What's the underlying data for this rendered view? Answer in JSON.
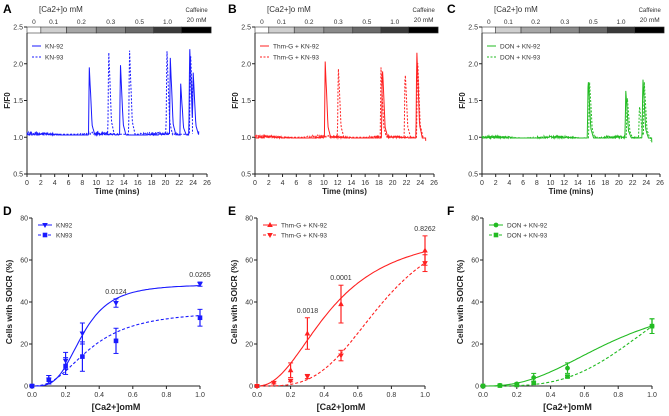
{
  "chart_data": [
    {
      "panel": "A",
      "type": "line",
      "bar_title": "[Ca2+]o mM",
      "bar_segments": [
        {
          "label": "0",
          "start": 0,
          "end": 2,
          "color": "#ffffff"
        },
        {
          "label": "0.1",
          "start": 2,
          "end": 5.7,
          "color": "#cfcfcf"
        },
        {
          "label": "0.2",
          "start": 5.7,
          "end": 10,
          "color": "#a6a6a6"
        },
        {
          "label": "0.3",
          "start": 10,
          "end": 14.2,
          "color": "#8a8a8a"
        },
        {
          "label": "0.5",
          "start": 14.2,
          "end": 18.3,
          "color": "#6a6a6a"
        },
        {
          "label": "1.0",
          "start": 18.3,
          "end": 22.3,
          "color": "#3a3a3a"
        },
        {
          "label": "",
          "start": 22.3,
          "end": 26.6,
          "color": "#000000"
        }
      ],
      "caffeine_label": [
        "Caffeine",
        "20 mM"
      ],
      "xlabel": "Time (mins)",
      "ylabel": "F/F0",
      "xlim": [
        0,
        26
      ],
      "ylim": [
        0.5,
        2.5
      ],
      "xticks": [
        0,
        2,
        4,
        6,
        8,
        10,
        12,
        14,
        16,
        18,
        20,
        22,
        24,
        26
      ],
      "yticks": [
        0.5,
        1.0,
        1.5,
        2.0,
        2.5
      ],
      "color": "#1a1aff",
      "legend": "top-left",
      "series": [
        {
          "name": "KN-92",
          "style": "solid",
          "baseline": 1.03,
          "end": 24.8,
          "end_value": 1.08,
          "spikes": [
            [
              9.0,
              1.95
            ],
            [
              13.5,
              1.98
            ],
            [
              20.7,
              2.08
            ],
            [
              22.2,
              1.73
            ],
            [
              23.5,
              2.25
            ],
            [
              24.0,
              1.88
            ]
          ]
        },
        {
          "name": "KN-93",
          "style": "dashed",
          "baseline": 1.04,
          "end": 23.9,
          "end_value": 1.05,
          "spikes": [
            [
              11.8,
              2.2
            ],
            [
              14.8,
              2.23
            ],
            [
              20.2,
              2.22
            ],
            [
              23.6,
              2.2
            ]
          ]
        }
      ]
    },
    {
      "panel": "B",
      "type": "line",
      "bar_title": "[Ca2+]o mM",
      "bar_segments": [
        {
          "label": "0",
          "start": 0,
          "end": 2,
          "color": "#ffffff"
        },
        {
          "label": "0.1",
          "start": 2,
          "end": 5.7,
          "color": "#cfcfcf"
        },
        {
          "label": "0.2",
          "start": 5.7,
          "end": 10,
          "color": "#a6a6a6"
        },
        {
          "label": "0.3",
          "start": 10,
          "end": 14.2,
          "color": "#8a8a8a"
        },
        {
          "label": "0.5",
          "start": 14.2,
          "end": 18.3,
          "color": "#6a6a6a"
        },
        {
          "label": "1.0",
          "start": 18.3,
          "end": 22.3,
          "color": "#3a3a3a"
        },
        {
          "label": "",
          "start": 22.3,
          "end": 26.6,
          "color": "#000000"
        }
      ],
      "caffeine_label": [
        "Caffeine",
        "20 mM"
      ],
      "xlabel": "Time (mins)",
      "ylabel": "F/F0",
      "xlim": [
        0,
        26
      ],
      "ylim": [
        0.5,
        2.5
      ],
      "xticks": [
        0,
        2,
        4,
        6,
        8,
        10,
        12,
        14,
        16,
        18,
        20,
        22,
        24,
        26
      ],
      "yticks": [
        0.5,
        1.0,
        1.5,
        2.0,
        2.5
      ],
      "color": "#ff2020",
      "legend": "top-left",
      "series": [
        {
          "name": "Thm-G + KN-92",
          "style": "solid",
          "baseline": 0.99,
          "end": 24.8,
          "end_value": 0.95,
          "spikes": [
            [
              10.2,
              2.03
            ],
            [
              18.5,
              1.98
            ],
            [
              23.5,
              2.2
            ]
          ]
        },
        {
          "name": "Thm-G + KN-93",
          "style": "dashed",
          "baseline": 1.0,
          "end": 24.6,
          "end_value": 1.0,
          "spikes": [
            [
              12.1,
              1.97
            ],
            [
              18.3,
              1.95
            ],
            [
              21.8,
              1.92
            ],
            [
              23.6,
              2.1
            ]
          ]
        }
      ]
    },
    {
      "panel": "C",
      "type": "line",
      "bar_title": "[Ca2+]o mM",
      "bar_segments": [
        {
          "label": "0",
          "start": 0,
          "end": 2,
          "color": "#ffffff"
        },
        {
          "label": "0.1",
          "start": 2,
          "end": 5.7,
          "color": "#cfcfcf"
        },
        {
          "label": "0.2",
          "start": 5.7,
          "end": 10,
          "color": "#a6a6a6"
        },
        {
          "label": "0.3",
          "start": 10,
          "end": 14.2,
          "color": "#8a8a8a"
        },
        {
          "label": "0.5",
          "start": 14.2,
          "end": 18.3,
          "color": "#6a6a6a"
        },
        {
          "label": "1.0",
          "start": 18.3,
          "end": 22.3,
          "color": "#3a3a3a"
        },
        {
          "label": "",
          "start": 22.3,
          "end": 26.6,
          "color": "#000000"
        }
      ],
      "caffeine_label": [
        "Caffeine",
        "20 mM"
      ],
      "xlabel": "Time (mins)",
      "ylabel": "F/F0",
      "xlim": [
        0,
        26
      ],
      "ylim": [
        0.5,
        2.5
      ],
      "xticks": [
        0,
        2,
        4,
        6,
        8,
        10,
        12,
        14,
        16,
        18,
        20,
        22,
        24,
        26
      ],
      "yticks": [
        0.5,
        1.0,
        1.5,
        2.0,
        2.5
      ],
      "color": "#22bb22",
      "legend": "top-left",
      "series": [
        {
          "name": "DON + KN-92",
          "style": "solid",
          "baseline": 0.99,
          "end": 24.8,
          "end_value": 0.93,
          "spikes": [
            [
              15.5,
              1.82
            ],
            [
              21.0,
              1.63
            ],
            [
              23.5,
              1.82
            ]
          ]
        },
        {
          "name": "DON + KN-93",
          "style": "dashed",
          "baseline": 0.99,
          "end": 24.6,
          "end_value": 0.95,
          "spikes": [
            [
              15.7,
              1.78
            ],
            [
              21.2,
              1.58
            ],
            [
              23.0,
              1.45
            ],
            [
              23.7,
              1.75
            ]
          ]
        }
      ]
    },
    {
      "panel": "D",
      "type": "scatter",
      "xlabel": "[Ca2+]omM",
      "ylabel": "Cells with SOICR (%)",
      "xlim": [
        0,
        1.0
      ],
      "ylim": [
        0,
        80
      ],
      "xticks": [
        0.0,
        0.2,
        0.4,
        0.6,
        0.8,
        1.0
      ],
      "yticks": [
        0,
        20,
        40,
        60,
        80
      ],
      "color": "#1a1aff",
      "legend": "top-left",
      "annotations": [
        {
          "x": 0.5,
          "text": "0.0124"
        },
        {
          "x": 1.0,
          "text": "0.0265"
        }
      ],
      "series": [
        {
          "name": "KN92",
          "style": "solid",
          "marker": "triangle-down",
          "x": [
            0,
            0.1,
            0.2,
            0.3,
            0.5,
            1.0
          ],
          "y": [
            0,
            3,
            12,
            25,
            39.5,
            48.5
          ],
          "err": [
            0,
            2,
            4,
            5,
            2,
            1
          ],
          "fit": {
            "top": 48.5,
            "ec50": 0.3,
            "hill": 3.5
          }
        },
        {
          "name": "KN93",
          "style": "dashed",
          "marker": "square",
          "x": [
            0,
            0.1,
            0.2,
            0.3,
            0.5,
            1.0
          ],
          "y": [
            0,
            3,
            9.5,
            14,
            21.5,
            32.5
          ],
          "err": [
            0,
            2,
            4,
            7,
            6,
            4
          ],
          "fit": {
            "top": 36,
            "ec50": 0.35,
            "hill": 2.5
          }
        }
      ]
    },
    {
      "panel": "E",
      "type": "scatter",
      "xlabel": "[Ca2+]omM",
      "ylabel": "Cells with SOICR (%)",
      "xlim": [
        0,
        1.0
      ],
      "ylim": [
        0,
        80
      ],
      "xticks": [
        0.0,
        0.2,
        0.4,
        0.6,
        0.8,
        1.0
      ],
      "yticks": [
        0,
        20,
        40,
        60,
        80
      ],
      "color": "#ff2020",
      "legend": "top-left",
      "annotations": [
        {
          "x": 0.3,
          "text": "0.0018"
        },
        {
          "x": 0.5,
          "text": "0.0001"
        },
        {
          "x": 1.0,
          "text": "0.8262"
        }
      ],
      "series": [
        {
          "name": "Thm-G + KN-92",
          "style": "solid",
          "marker": "triangle-up",
          "x": [
            0,
            0.2,
            0.3,
            0.5,
            1.0
          ],
          "y": [
            0,
            7.5,
            25,
            39,
            64.5
          ],
          "err": [
            0,
            3.5,
            7.5,
            9,
            7
          ],
          "fit": {
            "top": 75,
            "ec50": 0.45,
            "hill": 2.2
          }
        },
        {
          "name": "Thm-G + KN-93",
          "style": "dashed",
          "marker": "triangle-down",
          "x": [
            0,
            0.1,
            0.2,
            0.3,
            0.5,
            1.0
          ],
          "y": [
            0,
            1.5,
            2.5,
            4.5,
            14.5,
            58.5
          ],
          "err": [
            0,
            0.5,
            0.5,
            1,
            2.5,
            4
          ],
          "fit": {
            "top": 80,
            "ec50": 0.75,
            "hill": 3.5
          }
        }
      ]
    },
    {
      "panel": "F",
      "type": "scatter",
      "xlabel": "[Ca2+]omM",
      "ylabel": "Cells with SOICR (%)",
      "xlim": [
        0,
        1.0
      ],
      "ylim": [
        0,
        80
      ],
      "xticks": [
        0.0,
        0.2,
        0.4,
        0.6,
        0.8,
        1.0
      ],
      "yticks": [
        0,
        20,
        40,
        60,
        80
      ],
      "color": "#22bb22",
      "legend": "top-left",
      "annotations": [],
      "series": [
        {
          "name": "DON + KN-92",
          "style": "solid",
          "marker": "circle",
          "x": [
            0,
            0.1,
            0.2,
            0.3,
            0.5,
            1.0
          ],
          "y": [
            0,
            0.3,
            1,
            4,
            8.5,
            28.5
          ],
          "err": [
            0,
            0.3,
            0.5,
            2,
            2.5,
            3.5
          ],
          "fit": {
            "top": 45,
            "ec50": 0.8,
            "hill": 2.5
          }
        },
        {
          "name": "DON + KN-93",
          "style": "dashed",
          "marker": "square",
          "x": [
            0,
            0.1,
            0.2,
            0.3,
            0.5,
            1.0
          ],
          "y": [
            0,
            0.2,
            0.5,
            1.5,
            4.5,
            28.5
          ],
          "err": [
            0,
            0,
            0,
            0,
            0.5,
            3.5
          ],
          "fit": {
            "top": 68,
            "ec50": 1.1,
            "hill": 3.5
          }
        }
      ]
    }
  ]
}
